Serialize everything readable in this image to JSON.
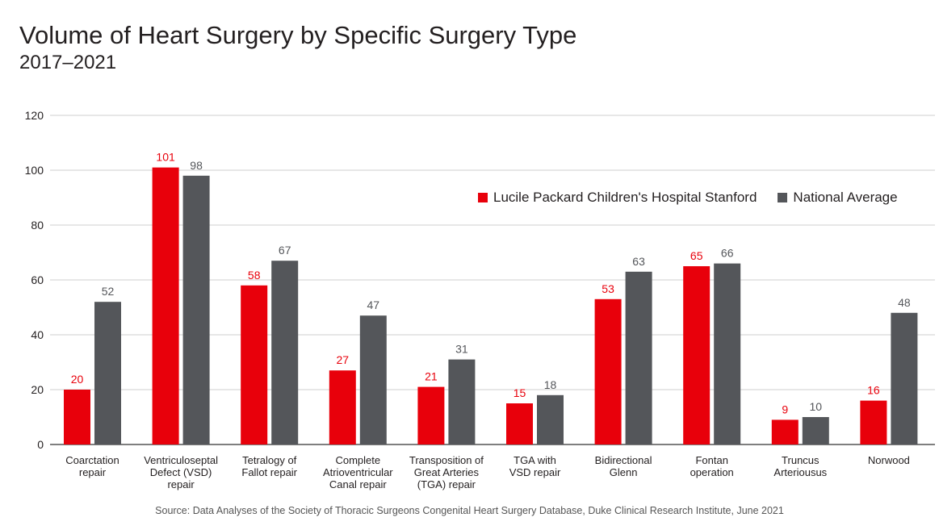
{
  "header": {
    "title": "Volume of Heart Surgery by Specific Surgery Type",
    "subtitle": "2017–2021"
  },
  "footer": {
    "source": "Source: Data Analyses of the Society of Thoracic Surgeons Congenital Heart Surgery Database, Duke Clinical Research Institute, June 2021"
  },
  "chart_data": {
    "type": "bar",
    "title": "Volume of Heart Surgery by Specific Surgery Type",
    "subtitle": "2017–2021",
    "xlabel": "",
    "ylabel": "",
    "ylim": [
      0,
      120
    ],
    "yticks": [
      0,
      20,
      40,
      60,
      80,
      100,
      120
    ],
    "grid": true,
    "legend_position": "top-right",
    "categories": [
      [
        "Coarctation",
        "repair"
      ],
      [
        "Ventriculoseptal",
        "Defect (VSD)",
        "repair"
      ],
      [
        "Tetralogy of",
        "Fallot repair"
      ],
      [
        "Complete",
        "Atrioventricular",
        "Canal repair"
      ],
      [
        "Transposition of",
        "Great Arteries",
        "(TGA) repair"
      ],
      [
        "TGA with",
        "VSD repair"
      ],
      [
        "Bidirectional",
        "Glenn"
      ],
      [
        "Fontan",
        "operation"
      ],
      [
        "Truncus",
        "Arteriousus"
      ],
      [
        "Norwood"
      ]
    ],
    "series": [
      {
        "name": "Lucile Packard Children's Hospital Stanford",
        "color": "#e8000b",
        "values": [
          20,
          101,
          58,
          27,
          21,
          15,
          53,
          65,
          9,
          16
        ]
      },
      {
        "name": "National Average",
        "color": "#54565a",
        "values": [
          52,
          98,
          67,
          47,
          31,
          18,
          63,
          66,
          10,
          48
        ]
      }
    ],
    "label_colors": [
      "#e8000b",
      "#54565a"
    ]
  }
}
